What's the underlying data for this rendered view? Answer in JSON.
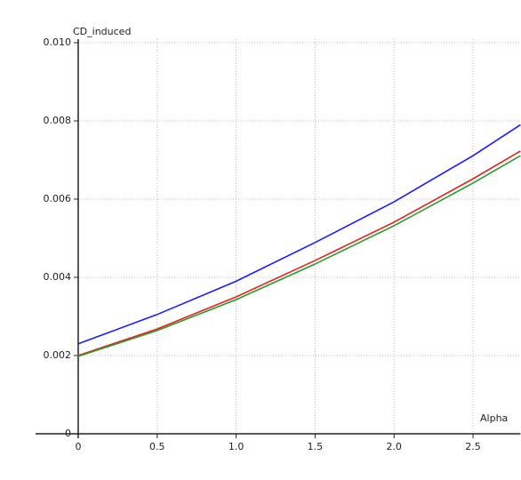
{
  "chart_data": {
    "type": "line",
    "y_label": "CD_induced",
    "x_label": "Alpha",
    "x": [
      0,
      0.5,
      1.0,
      1.5,
      2.0,
      2.5,
      2.8
    ],
    "series": [
      {
        "color": "#1a1aff",
        "values": [
          0.0023,
          0.00305,
          0.0039,
          0.00489,
          0.00593,
          0.00711,
          0.0079
        ]
      },
      {
        "color": "#e8201a",
        "values": [
          0.002,
          0.00268,
          0.0035,
          0.00443,
          0.00541,
          0.00652,
          0.00723
        ]
      },
      {
        "color": "#2a9a2a",
        "values": [
          0.00198,
          0.00264,
          0.00343,
          0.00434,
          0.00532,
          0.00641,
          0.00711
        ]
      }
    ],
    "xlim": [
      -0.27,
      2.8
    ],
    "ylim": [
      0,
      0.01
    ],
    "xticks": [
      0,
      0.5,
      {
        "value": 1.0,
        "label": "1.0"
      },
      1.5,
      {
        "value": 2.0,
        "label": "2.0"
      },
      2.5
    ],
    "yticks": [
      0,
      0.002,
      0.004,
      0.006,
      0.008,
      {
        "value": 0.01,
        "label": "0.010"
      }
    ],
    "grid": true
  }
}
